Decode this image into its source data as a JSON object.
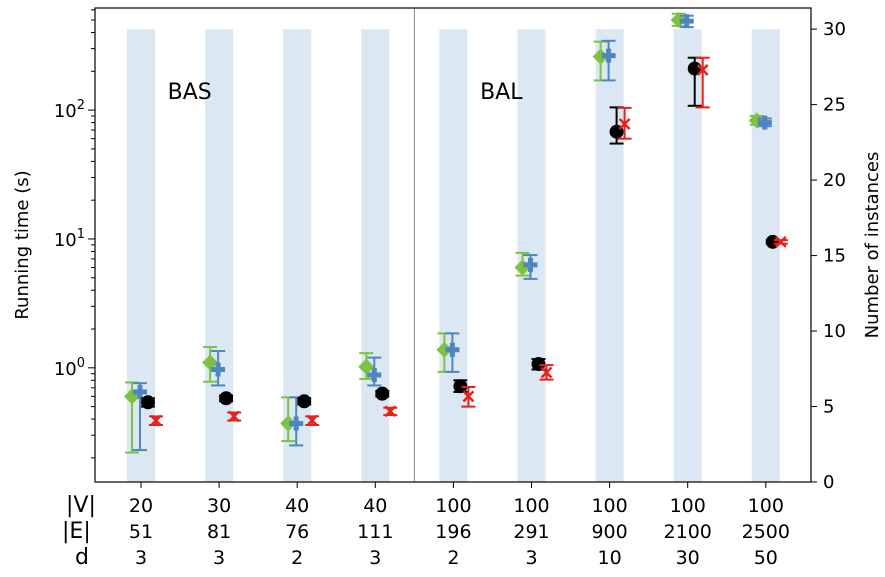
{
  "chart_data": {
    "type": "scatter",
    "ylabel_left": "Running time (s)",
    "ylabel_right": "Number of instances",
    "yscale_left": "log",
    "ylim_left": [
      0.13,
      620
    ],
    "ylim_right": [
      0,
      31.4
    ],
    "right_ticks": [
      0,
      5,
      10,
      15,
      20,
      25,
      30
    ],
    "left_ticks": [
      {
        "base": "10",
        "exp": "0",
        "value": 1
      },
      {
        "base": "10",
        "exp": "1",
        "value": 10
      },
      {
        "base": "10",
        "exp": "2",
        "value": 100
      }
    ],
    "row_labels": [
      "|V|",
      "|E|",
      "d"
    ],
    "groups": [
      {
        "V": "20",
        "E": "51",
        "d": "3"
      },
      {
        "V": "30",
        "E": "81",
        "d": "3"
      },
      {
        "V": "40",
        "E": "76",
        "d": "2"
      },
      {
        "V": "40",
        "E": "111",
        "d": "3"
      },
      {
        "V": "100",
        "E": "196",
        "d": "2"
      },
      {
        "V": "100",
        "E": "291",
        "d": "3"
      },
      {
        "V": "100",
        "E": "900",
        "d": "10"
      },
      {
        "V": "100",
        "E": "2100",
        "d": "30"
      },
      {
        "V": "100",
        "E": "2500",
        "d": "50"
      }
    ],
    "group_labels": [
      {
        "text": "BAS",
        "group": 0.7
      },
      {
        "text": "BAL",
        "group": 4.7
      }
    ],
    "separator_after_group": 3,
    "instances_bars": [
      30,
      30,
      30,
      30,
      30,
      30,
      30,
      30,
      30
    ],
    "series": [
      {
        "marker": "diamond",
        "color": "#7dc242",
        "points": [
          {
            "y": 0.6,
            "lo": 0.22,
            "hi": 0.77
          },
          {
            "y": 1.1,
            "lo": 0.78,
            "hi": 1.45
          },
          {
            "y": 0.37,
            "lo": 0.27,
            "hi": 0.59
          },
          {
            "y": 1.02,
            "lo": 0.82,
            "hi": 1.3
          },
          {
            "y": 1.38,
            "lo": 0.93,
            "hi": 1.85
          },
          {
            "y": 6.0,
            "lo": 5.2,
            "hi": 7.8
          },
          {
            "y": 260,
            "lo": 170,
            "hi": 340
          },
          {
            "y": 500,
            "lo": 450,
            "hi": 560
          },
          {
            "y": 83,
            "lo": 77,
            "hi": 90
          }
        ]
      },
      {
        "marker": "plus",
        "color": "#4f86c0",
        "points": [
          {
            "y": 0.65,
            "lo": 0.23,
            "hi": 0.76
          },
          {
            "y": 0.97,
            "lo": 0.73,
            "hi": 1.35
          },
          {
            "y": 0.37,
            "lo": 0.25,
            "hi": 0.59
          },
          {
            "y": 0.88,
            "lo": 0.73,
            "hi": 1.2
          },
          {
            "y": 1.38,
            "lo": 0.93,
            "hi": 1.85
          },
          {
            "y": 6.3,
            "lo": 4.9,
            "hi": 7.5
          },
          {
            "y": 265,
            "lo": 170,
            "hi": 345
          },
          {
            "y": 490,
            "lo": 440,
            "hi": 540
          },
          {
            "y": 80,
            "lo": 75,
            "hi": 86
          }
        ]
      },
      {
        "marker": "circle",
        "color": "#000000",
        "points": [
          {
            "y": 0.54,
            "lo": 0.5,
            "hi": 0.58
          },
          {
            "y": 0.58,
            "lo": 0.55,
            "hi": 0.61
          },
          {
            "y": 0.55,
            "lo": 0.52,
            "hi": 0.58
          },
          {
            "y": 0.63,
            "lo": 0.6,
            "hi": 0.66
          },
          {
            "y": 0.72,
            "lo": 0.65,
            "hi": 0.8
          },
          {
            "y": 1.07,
            "lo": 0.97,
            "hi": 1.17
          },
          {
            "y": 68,
            "lo": 55,
            "hi": 105
          },
          {
            "y": 210,
            "lo": 108,
            "hi": 255
          },
          {
            "y": 9.5,
            "lo": 9.2,
            "hi": 9.8
          }
        ]
      },
      {
        "marker": "x",
        "color": "#e8211b",
        "points": [
          {
            "y": 0.39,
            "lo": 0.36,
            "hi": 0.42
          },
          {
            "y": 0.42,
            "lo": 0.39,
            "hi": 0.45
          },
          {
            "y": 0.39,
            "lo": 0.36,
            "hi": 0.42
          },
          {
            "y": 0.46,
            "lo": 0.43,
            "hi": 0.49
          },
          {
            "y": 0.6,
            "lo": 0.5,
            "hi": 0.71
          },
          {
            "y": 0.92,
            "lo": 0.81,
            "hi": 1.05
          },
          {
            "y": 78,
            "lo": 60,
            "hi": 104
          },
          {
            "y": 205,
            "lo": 105,
            "hi": 255
          },
          {
            "y": 9.5,
            "lo": 9.2,
            "hi": 9.8
          }
        ]
      }
    ]
  }
}
